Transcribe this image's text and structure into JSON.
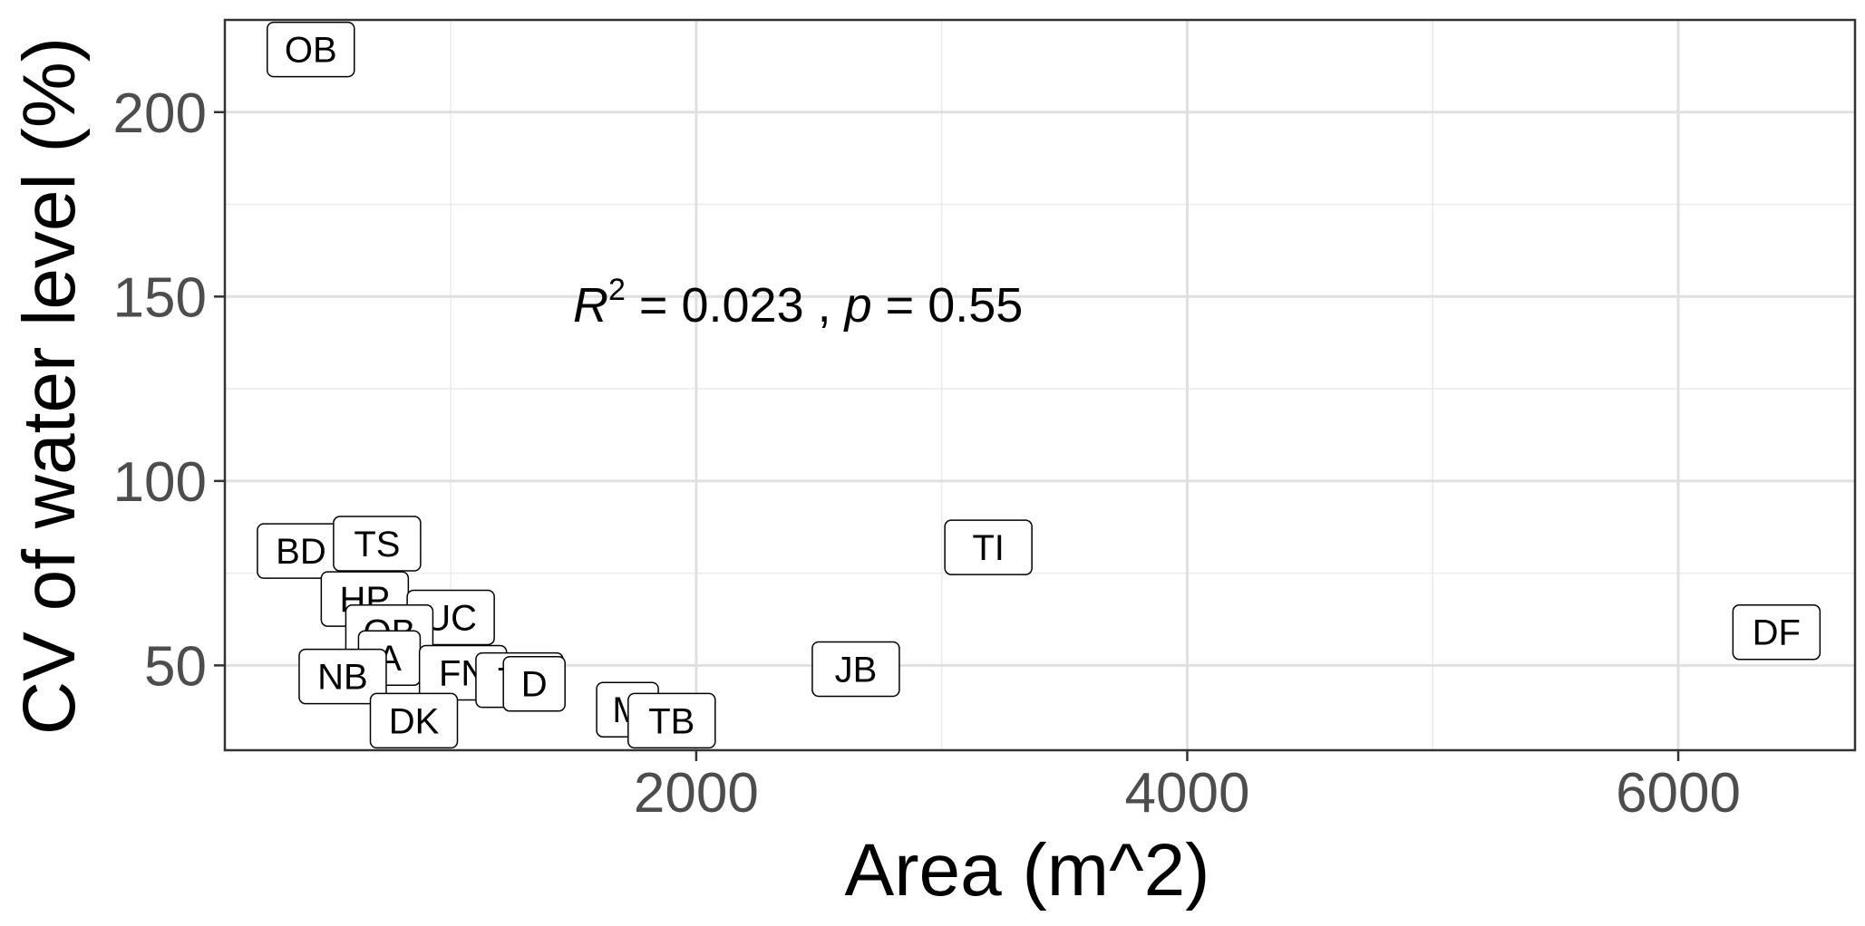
{
  "chart_data": {
    "type": "scatter",
    "title": "",
    "xlabel": "Area (m^2)",
    "ylabel": "CV of water level (%)",
    "xlim": [
      80,
      6720
    ],
    "ylim": [
      27,
      225
    ],
    "x_ticks": [
      2000,
      4000,
      6000
    ],
    "x_tick_labels": [
      "2000",
      "4000",
      "6000"
    ],
    "y_ticks": [
      50,
      100,
      150,
      200
    ],
    "y_tick_labels": [
      "50",
      "100",
      "150",
      "200"
    ],
    "grid": true,
    "legend": "none",
    "annotation": {
      "r_symbol": "R",
      "r_exponent": "2",
      "r_value": " = 0.023 , ",
      "p_symbol": "p",
      "p_value": " = 0.55"
    },
    "points": [
      {
        "label": "OB",
        "x": 430,
        "y": 217
      },
      {
        "label": "BD",
        "x": 390,
        "y": 81
      },
      {
        "label": "TS",
        "x": 700,
        "y": 83
      },
      {
        "label": "TI",
        "x": 3190,
        "y": 82
      },
      {
        "label": "HP",
        "x": 650,
        "y": 68
      },
      {
        "label": "UC",
        "x": 1000,
        "y": 63
      },
      {
        "label": "QB",
        "x": 750,
        "y": 59
      },
      {
        "label": "A",
        "x": 750,
        "y": 52
      },
      {
        "label": "NB",
        "x": 560,
        "y": 47
      },
      {
        "label": "FN",
        "x": 1050,
        "y": 48
      },
      {
        "label": "TA",
        "x": 1280,
        "y": 46
      },
      {
        "label": "D",
        "x": 1340,
        "y": 45
      },
      {
        "label": "DK",
        "x": 850,
        "y": 35
      },
      {
        "label": "M",
        "x": 1720,
        "y": 38
      },
      {
        "label": "TB",
        "x": 1900,
        "y": 35
      },
      {
        "label": "JB",
        "x": 2650,
        "y": 49
      },
      {
        "label": "DF",
        "x": 6400,
        "y": 59
      }
    ]
  }
}
